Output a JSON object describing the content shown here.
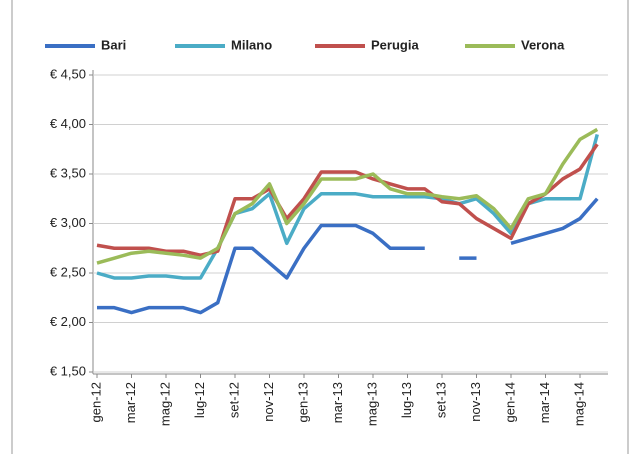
{
  "chart_data": {
    "type": "line",
    "categories": [
      "gen-12",
      null,
      "mar-12",
      null,
      "mag-12",
      null,
      "lug-12",
      null,
      "set-12",
      null,
      "nov-12",
      null,
      "gen-13",
      null,
      "mar-13",
      null,
      "mag-13",
      null,
      "lug-13",
      null,
      "set-13",
      null,
      "nov-13",
      null,
      "gen-14",
      null,
      "mar-14",
      null,
      "mag-14",
      null
    ],
    "series": [
      {
        "name": "Bari",
        "color": "#3a6fc4",
        "values": [
          2.15,
          2.15,
          2.1,
          2.15,
          2.15,
          2.15,
          2.1,
          2.2,
          2.75,
          2.75,
          2.6,
          2.45,
          2.75,
          2.98,
          2.98,
          2.98,
          2.9,
          2.75,
          2.75,
          2.75,
          null,
          2.65,
          2.65,
          null,
          2.8,
          2.85,
          2.9,
          2.95,
          3.05,
          3.25
        ]
      },
      {
        "name": "Milano",
        "color": "#4bacc6",
        "values": [
          2.5,
          2.45,
          2.45,
          2.47,
          2.47,
          2.45,
          2.45,
          2.75,
          3.1,
          3.15,
          3.3,
          2.8,
          3.15,
          3.3,
          3.3,
          3.3,
          3.27,
          3.27,
          3.27,
          3.27,
          3.25,
          3.2,
          3.25,
          3.1,
          2.9,
          3.2,
          3.25,
          3.25,
          3.25,
          3.9
        ]
      },
      {
        "name": "Perugia",
        "color": "#c0504d",
        "values": [
          2.78,
          2.75,
          2.75,
          2.75,
          2.72,
          2.72,
          2.68,
          2.72,
          3.25,
          3.25,
          3.35,
          3.05,
          3.25,
          3.52,
          3.52,
          3.52,
          3.45,
          3.4,
          3.35,
          3.35,
          3.22,
          3.2,
          3.05,
          2.95,
          2.85,
          3.2,
          3.3,
          3.45,
          3.55,
          3.8
        ]
      },
      {
        "name": "Verona",
        "color": "#9bbb59",
        "values": [
          2.6,
          2.65,
          2.7,
          2.72,
          2.7,
          2.68,
          2.65,
          2.75,
          3.1,
          3.2,
          3.4,
          3.0,
          3.2,
          3.45,
          3.45,
          3.45,
          3.5,
          3.35,
          3.3,
          3.3,
          3.27,
          3.25,
          3.28,
          3.15,
          2.95,
          3.25,
          3.3,
          3.6,
          3.85,
          3.95
        ]
      }
    ],
    "ylim": [
      1.5,
      4.5
    ],
    "yticks": [
      {
        "value": 1.5,
        "label": "€ 1,50"
      },
      {
        "value": 2,
        "label": "€ 2,00"
      },
      {
        "value": 2.5,
        "label": "€ 2,50"
      },
      {
        "value": 3,
        "label": "€ 3,00"
      },
      {
        "value": 3.5,
        "label": "€ 3,50"
      },
      {
        "value": 4,
        "label": "€ 4,00"
      },
      {
        "value": 4.5,
        "label": "€ 4,50"
      }
    ],
    "grid": true,
    "legend": "top"
  }
}
